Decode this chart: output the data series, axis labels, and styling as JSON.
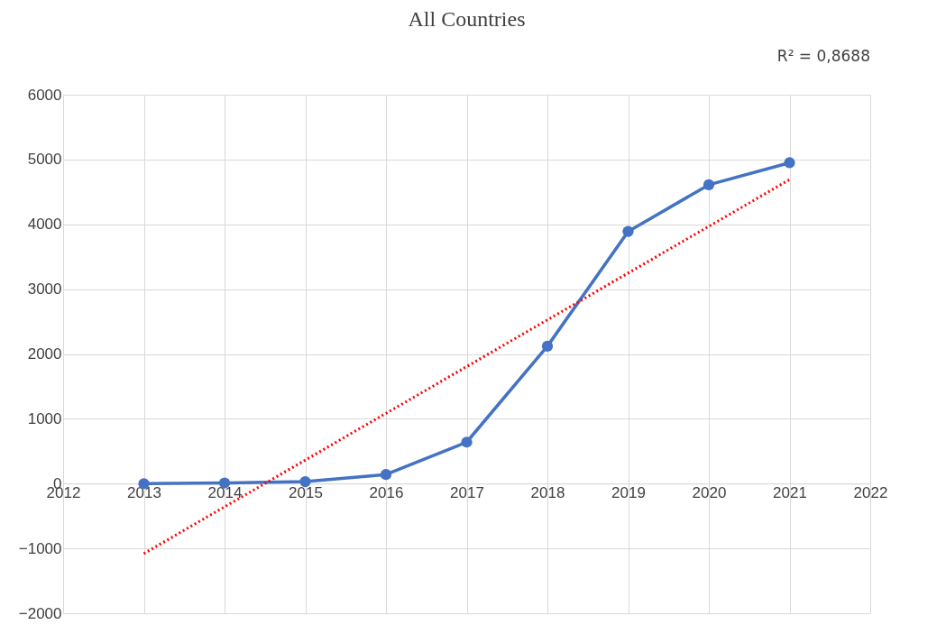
{
  "chart_data": {
    "type": "line",
    "title": "All Countries",
    "annotations": [
      "R² = 0,8688"
    ],
    "x": [
      2013,
      2014,
      2015,
      2016,
      2017,
      2018,
      2019,
      2020,
      2021
    ],
    "series": [
      {
        "color": "#4472c4",
        "values": [
          0,
          10,
          30,
          140,
          640,
          2120,
          3890,
          4610,
          4950
        ],
        "marker": "circle",
        "line_style": "solid"
      },
      {
        "type": "line",
        "color": "#ff0000",
        "x": [
          2013,
          2021
        ],
        "values": [
          -1080,
          4690
        ],
        "marker": "none",
        "line_style": "dotted"
      }
    ],
    "xlim": [
      2012,
      2022
    ],
    "xticks": [
      2012,
      2013,
      2014,
      2015,
      2016,
      2017,
      2018,
      2019,
      2020,
      2021,
      2022
    ],
    "ylim": [
      -2000,
      6000
    ],
    "yticks": [
      -2000,
      -1000,
      0,
      1000,
      2000,
      3000,
      4000,
      5000,
      6000
    ],
    "grid": true
  }
}
